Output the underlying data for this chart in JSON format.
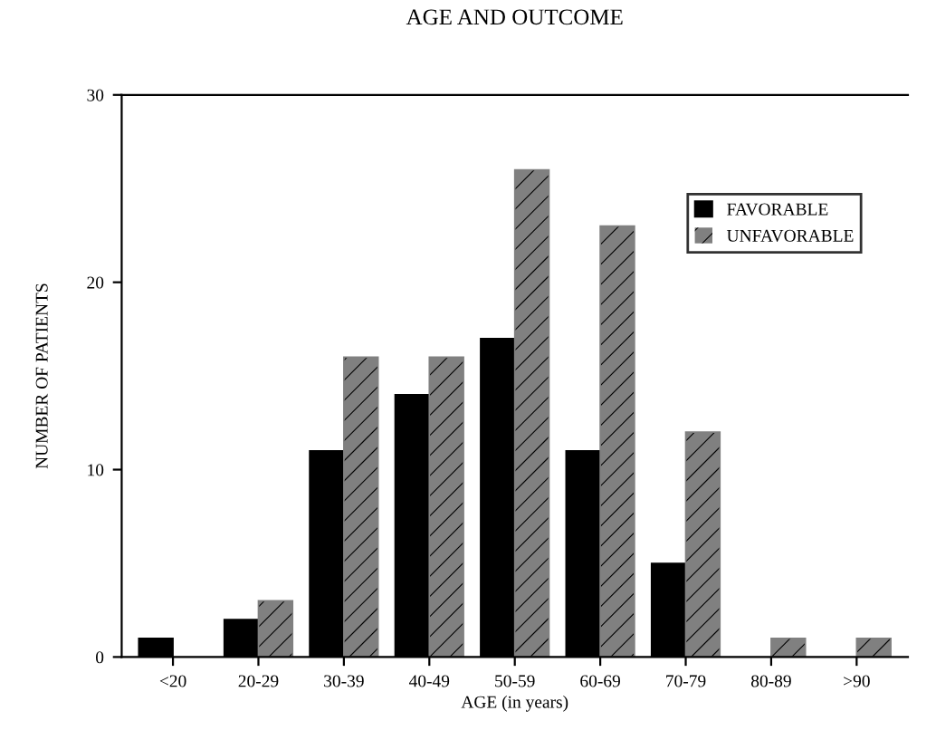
{
  "chart_data": {
    "type": "bar",
    "title": "AGE AND OUTCOME",
    "xlabel": "AGE (in years)",
    "ylabel": "NUMBER OF PATIENTS",
    "categories": [
      "<20",
      "20-29",
      "30-39",
      "40-49",
      "50-59",
      "60-69",
      "70-79",
      "80-89",
      ">90"
    ],
    "series": [
      {
        "name": "FAVORABLE",
        "color": "#000000",
        "values": [
          1,
          2,
          11,
          14,
          17,
          11,
          5,
          0,
          0
        ]
      },
      {
        "name": "UNFAVORABLE",
        "color": "#808080",
        "values": [
          0,
          3,
          16,
          16,
          26,
          23,
          12,
          1,
          1
        ]
      }
    ],
    "ylim": [
      0,
      30
    ],
    "yticks": [
      0,
      10,
      20,
      30
    ],
    "grid": false,
    "legend": "top right"
  }
}
